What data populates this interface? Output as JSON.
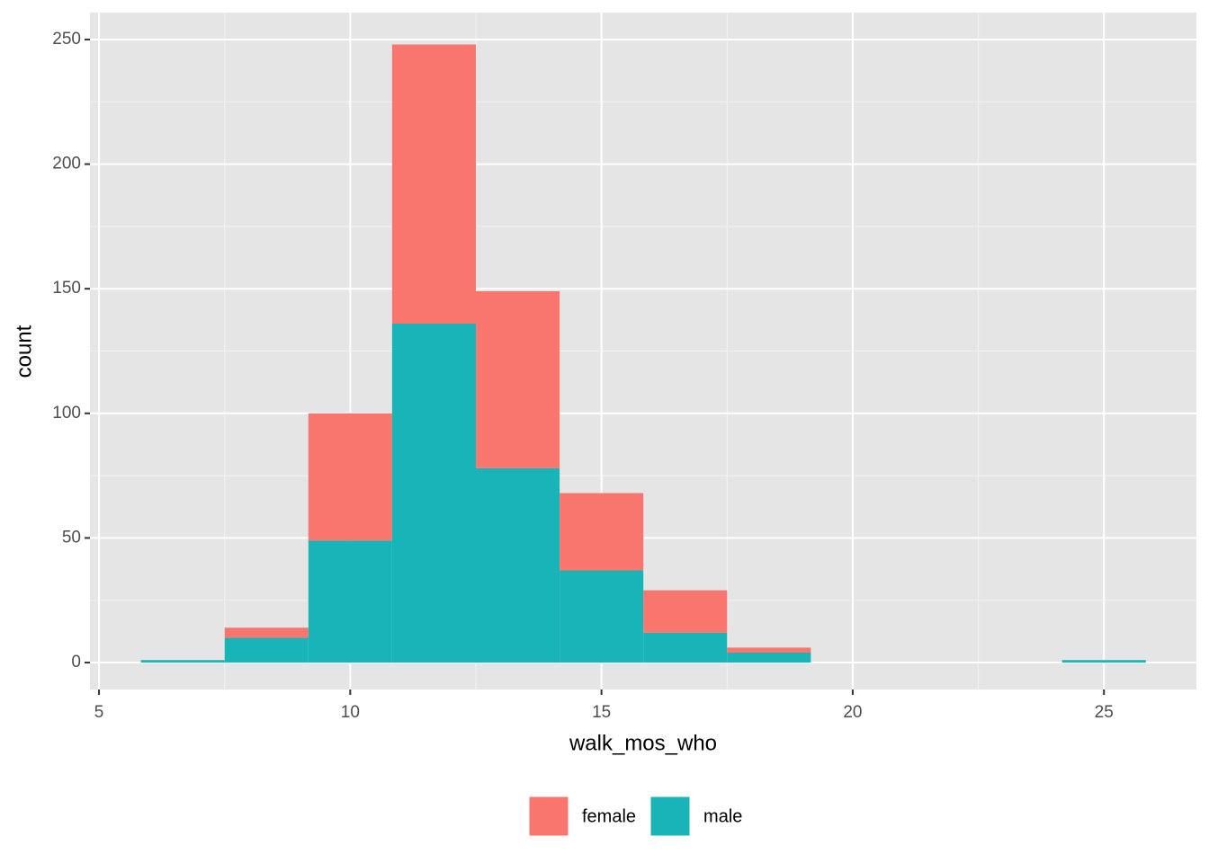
{
  "chart_data": {
    "type": "histogram",
    "x_label": "walk_mos_who",
    "y_label": "count",
    "bins": [
      5.833,
      7.5,
      9.167,
      10.833,
      12.5,
      14.167,
      15.833,
      17.5,
      19.167,
      20.833,
      22.5,
      24.167,
      25.833
    ],
    "series": [
      {
        "name": "female",
        "color": "#f8766d",
        "values": [
          0,
          4,
          51,
          112,
          71,
          31,
          17,
          2,
          0,
          0,
          0,
          0
        ]
      },
      {
        "name": "male",
        "color": "#19b4b8",
        "values": [
          1,
          10,
          49,
          136,
          78,
          37,
          12,
          4,
          0,
          0,
          0,
          1
        ]
      }
    ],
    "xlim": [
      4.82,
      26.84
    ],
    "xticks": [
      5,
      10,
      15,
      20,
      25
    ],
    "ylim": [
      -10.8,
      260.8
    ],
    "yticks": [
      0,
      50,
      100,
      150,
      200,
      250
    ],
    "grid": true,
    "legend": "bottom"
  }
}
